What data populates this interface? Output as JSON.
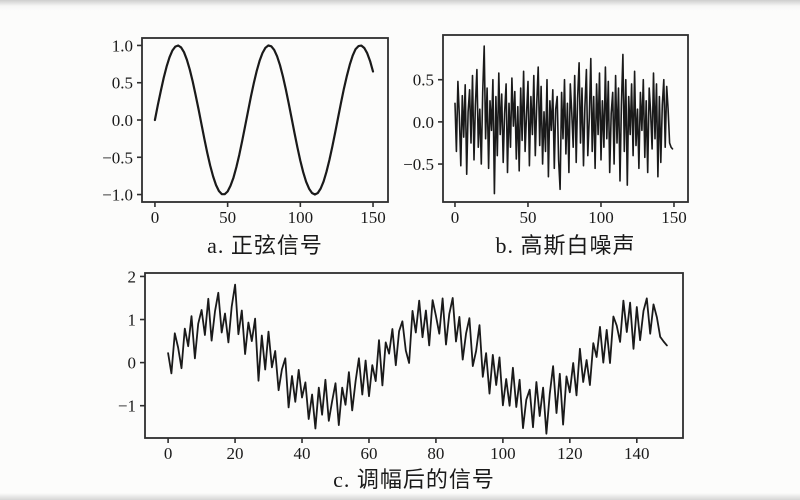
{
  "figure": {
    "captions": {
      "a": "a. 正弦信号",
      "b": "b. 高斯白噪声",
      "c": "c. 调幅后的信号"
    }
  },
  "colors": {
    "line": "#1a1a1a",
    "frame": "#2e2e2e",
    "tick": "#2e2e2e",
    "text": "#1a1a1a",
    "background": "#fcfcfb"
  },
  "chart_data": [
    {
      "id": "sine-signal",
      "type": "line",
      "title": "a. 正弦信号",
      "xlabel": "",
      "ylabel": "",
      "legend": "none",
      "grid": false,
      "x_start": 0,
      "x_step": 2,
      "xlim": [
        -8.9,
        160.3
      ],
      "ylim": [
        -1.1,
        1.1
      ],
      "xticks": [
        0,
        50,
        100,
        150
      ],
      "xtick_labels": [
        "0",
        "50",
        "100",
        "150"
      ],
      "yticks": [
        1.0,
        0.5,
        0.0,
        -0.5,
        -1.0
      ],
      "ytick_labels": [
        "1.0",
        "0.5",
        "0.0",
        "−0.5",
        "−1.0"
      ],
      "values": [
        0,
        0.199,
        0.389,
        0.565,
        0.717,
        0.841,
        0.932,
        0.985,
        1.0,
        0.974,
        0.909,
        0.808,
        0.675,
        0.516,
        0.335,
        0.141,
        -0.058,
        -0.256,
        -0.443,
        -0.612,
        -0.757,
        -0.872,
        -0.952,
        -0.994,
        -0.996,
        -0.959,
        -0.883,
        -0.773,
        -0.631,
        -0.465,
        -0.279,
        -0.083,
        0.116,
        0.312,
        0.494,
        0.657,
        0.794,
        0.899,
        0.968,
        0.999,
        0.989,
        0.94,
        0.855,
        0.735,
        0.585,
        0.412,
        0.223,
        0.025,
        -0.174,
        -0.366,
        -0.544,
        -0.7,
        -0.828,
        -0.922,
        -0.979,
        -1.0,
        -0.979,
        -0.919,
        -0.823,
        -0.693,
        -0.537,
        -0.358,
        -0.166,
        0.034,
        0.231,
        0.42,
        0.593,
        0.743,
        0.864,
        0.951,
        0.991,
        0.998,
        0.966,
        0.896,
        0.79,
        0.65
      ]
    },
    {
      "id": "gaussian-white-noise",
      "type": "line",
      "title": "b. 高斯白噪声",
      "xlabel": "",
      "ylabel": "",
      "legend": "none",
      "grid": false,
      "x_start": 0,
      "x_step": 1,
      "xlim": [
        -8.2,
        159.6
      ],
      "ylim": [
        -0.95,
        1.03
      ],
      "xticks": [
        0,
        50,
        100,
        150
      ],
      "xtick_labels": [
        "0",
        "50",
        "100",
        "150"
      ],
      "yticks": [
        0.5,
        0.0,
        -0.5
      ],
      "ytick_labels": [
        "0.5",
        "0.0",
        "−0.5"
      ],
      "values": [
        0.22,
        -0.35,
        0.48,
        0.05,
        -0.52,
        0.31,
        -0.18,
        0.44,
        -0.62,
        0.12,
        0.38,
        -0.25,
        0.55,
        -0.45,
        0.2,
        0.62,
        -0.3,
        0.15,
        -0.5,
        0.35,
        0.9,
        -0.2,
        0.4,
        -0.55,
        0.25,
        -0.1,
        0.5,
        -0.85,
        0.3,
        -0.4,
        0.58,
        -0.15,
        0.33,
        -0.48,
        0.1,
        0.45,
        -0.6,
        0.22,
        -0.3,
        0.52,
        -0.05,
        0.36,
        -0.44,
        0.18,
        -0.58,
        0.4,
        -0.22,
        0.6,
        -0.35,
        0.08,
        0.48,
        -0.52,
        0.3,
        -0.15,
        0.55,
        -0.4,
        0.2,
        0.65,
        -0.28,
        0.42,
        -0.5,
        0.12,
        -0.35,
        0.5,
        -0.65,
        0.25,
        -0.1,
        0.38,
        -0.55,
        0.15,
        0.3,
        -0.45,
        -0.8,
        0.35,
        -0.2,
        0.5,
        -0.38,
        0.22,
        -0.6,
        0.45,
        0.1,
        -0.3,
        0.55,
        -0.48,
        0.28,
        0.7,
        -0.25,
        0.4,
        -0.52,
        0.18,
        0.62,
        -0.4,
        0.05,
        0.75,
        -0.35,
        0.3,
        -0.55,
        0.45,
        -0.15,
        0.58,
        -0.45,
        0.25,
        -0.3,
        0.65,
        -0.2,
        0.48,
        -0.6,
        0.1,
        0.35,
        -0.5,
        0.55,
        -0.25,
        0.4,
        -0.7,
        0.2,
        0.8,
        -0.35,
        0.5,
        -0.75,
        0.3,
        -0.15,
        0.45,
        -0.4,
        0.6,
        -0.28,
        0.15,
        -0.55,
        0.35,
        -0.1,
        0.5,
        -0.42,
        0.25,
        -0.6,
        0.4,
        0.12,
        -0.32,
        0.58,
        -0.2,
        0.45,
        -0.65,
        0.3,
        -0.48,
        0.2,
        0.5,
        -0.3,
        0.42,
        0.15,
        -0.25,
        -0.3,
        -0.32
      ]
    },
    {
      "id": "modulated-signal",
      "type": "line",
      "title": "c. 调幅后的信号",
      "xlabel": "",
      "ylabel": "",
      "legend": "none",
      "grid": false,
      "x_start": 0,
      "x_step": 1,
      "xlim": [
        -6.9,
        153.8
      ],
      "ylim": [
        -1.75,
        2.08
      ],
      "xticks": [
        0,
        20,
        40,
        60,
        80,
        100,
        120,
        140
      ],
      "xtick_labels": [
        "0",
        "20",
        "40",
        "60",
        "80",
        "100",
        "120",
        "140"
      ],
      "yticks": [
        2,
        1,
        0,
        -1
      ],
      "ytick_labels": [
        "2",
        "1",
        "0",
        "−1"
      ],
      "values": [
        0.22,
        -0.25,
        0.68,
        0.35,
        -0.13,
        0.79,
        0.38,
        1.08,
        0.1,
        0.9,
        1.22,
        0.64,
        1.48,
        0.51,
        1.19,
        1.62,
        0.7,
        1.14,
        0.47,
        1.3,
        1.81,
        0.66,
        1.21,
        0.2,
        0.93,
        0.5,
        1.02,
        -0.42,
        0.63,
        -0.16,
        0.72,
        -0.11,
        0.27,
        -0.64,
        -0.16,
        0.1,
        -1.04,
        -0.31,
        -0.91,
        -0.17,
        -0.81,
        -0.46,
        -1.31,
        -0.74,
        -1.53,
        -0.58,
        -1.21,
        -0.4,
        -1.35,
        -0.9,
        -0.48,
        -1.45,
        -0.58,
        -0.98,
        -0.22,
        -1.11,
        -0.43,
        0.1,
        -0.74,
        0.05,
        -0.78,
        -0.06,
        -0.43,
        0.52,
        -0.53,
        0.47,
        0.21,
        0.78,
        -0.06,
        0.73,
        0.96,
        0.28,
        -0.01,
        1.2,
        0.7,
        1.44,
        0.59,
        1.21,
        0.4,
        1.45,
        1.09,
        0.67,
        1.49,
        0.42,
        1.13,
        1.5,
        0.49,
        1.06,
        0.07,
        0.68,
        1.03,
        -0.08,
        0.27,
        0.87,
        -0.33,
        0.22,
        -0.72,
        0.18,
        -0.52,
        0.12,
        -0.99,
        -0.38,
        -1.0,
        -0.12,
        -1.03,
        -0.4,
        -1.52,
        -0.86,
        -0.63,
        -1.5,
        -0.45,
        -1.24,
        -0.58,
        -1.65,
        -0.72,
        -0.08,
        -1.17,
        -0.26,
        -1.44,
        -0.32,
        -0.69,
        -0.01,
        -0.76,
        0.32,
        -0.45,
        0.06,
        -0.52,
        0.45,
        0.13,
        0.83,
        0.0,
        0.76,
        -0.01,
        1.07,
        0.86,
        0.48,
        1.44,
        0.71,
        1.39,
        0.32,
        1.29,
        0.52,
        1.2,
        1.49,
        0.67,
        1.35,
        1.05,
        0.6,
        0.49,
        0.4
      ]
    }
  ]
}
